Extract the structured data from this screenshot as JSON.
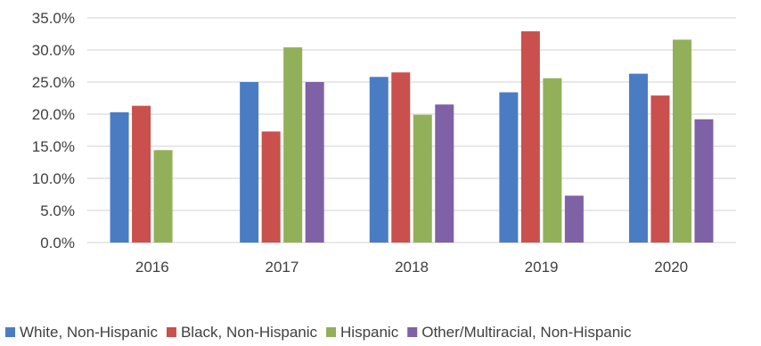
{
  "chart_data": {
    "type": "bar",
    "title": "",
    "xlabel": "",
    "ylabel": "",
    "categories": [
      "2016",
      "2017",
      "2018",
      "2019",
      "2020"
    ],
    "ylim": [
      0,
      35
    ],
    "yticks": [
      0,
      5,
      10,
      15,
      20,
      25,
      30,
      35
    ],
    "ytick_labels": [
      "0.0%",
      "5.0%",
      "10.0%",
      "15.0%",
      "20.0%",
      "25.0%",
      "30.0%",
      "35.0%"
    ],
    "grid": true,
    "legend_position": "bottom",
    "series": [
      {
        "name": "White, Non-Hispanic",
        "color": "#4A7CC4",
        "values": [
          20.3,
          25.0,
          25.8,
          23.4,
          26.3
        ]
      },
      {
        "name": "Black, Non-Hispanic",
        "color": "#C9504D",
        "values": [
          21.3,
          17.3,
          26.5,
          32.9,
          22.9
        ]
      },
      {
        "name": "Hispanic",
        "color": "#92B05A",
        "values": [
          14.4,
          30.4,
          19.9,
          25.6,
          31.6
        ]
      },
      {
        "name": "Other/Multiracial, Non-Hispanic",
        "color": "#7F61A6",
        "values": [
          0,
          25.0,
          21.5,
          7.3,
          19.2
        ]
      }
    ]
  }
}
